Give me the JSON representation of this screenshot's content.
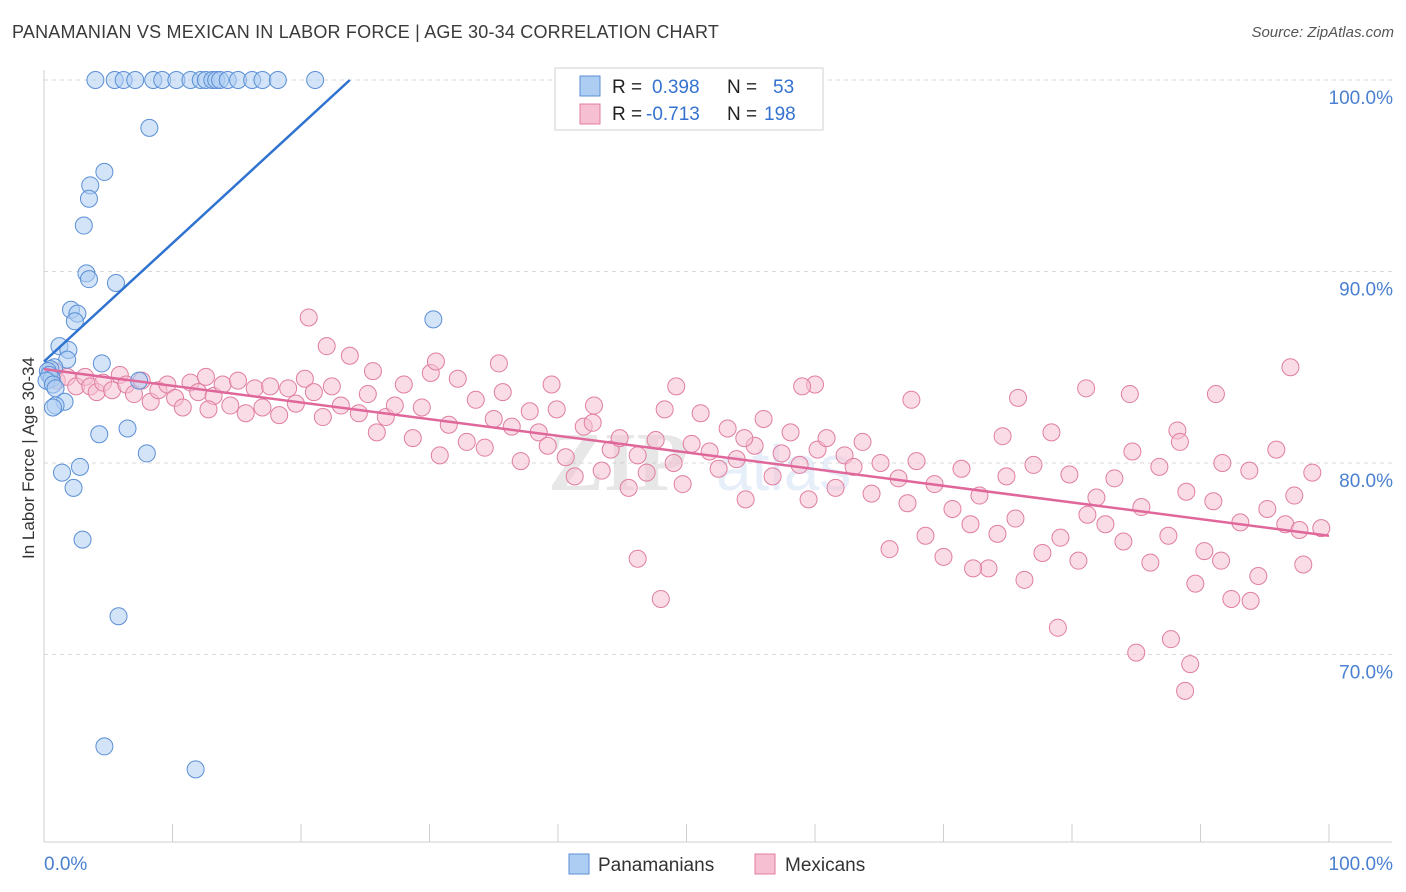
{
  "header": {
    "title": "PANAMANIAN VS MEXICAN IN LABOR FORCE | AGE 30-34 CORRELATION CHART",
    "source": "Source: ZipAtlas.com"
  },
  "colors": {
    "panamanian_fill": "#aecdf3",
    "panamanian_stroke": "#5b8fd6",
    "panamanian_line": "#2f72d0",
    "mexican_fill": "#f6bfd2",
    "mexican_stroke": "#e07ea1",
    "mexican_line": "#e0679a",
    "grid": "#d9d9d9",
    "axis_text": "#4a80d0"
  },
  "legend": {
    "rows": [
      {
        "r_label": "R =",
        "r_value": "0.398",
        "n_label": "N =",
        "n_value": "53"
      },
      {
        "r_label": "R =",
        "r_value": "-0.713",
        "n_label": "N =",
        "n_value": "198"
      }
    ]
  },
  "watermark": {
    "zip": "ZIP",
    "atlas": "atlas"
  },
  "chart_data": {
    "type": "scatter",
    "title": "PANAMANIAN VS MEXICAN IN LABOR FORCE | AGE 30-34 CORRELATION CHART",
    "xlabel": "",
    "ylabel": "In Labor Force | Age 30-34",
    "x_tick_labels": [
      "0.0%",
      "100.0%"
    ],
    "y_tick_labels": [
      "100.0%",
      "90.0%",
      "80.0%",
      "70.0%"
    ],
    "y_ticks": [
      100,
      90,
      80,
      70
    ],
    "xlim": [
      0,
      100
    ],
    "ylim": [
      60,
      101.5
    ],
    "grid": true,
    "legend_placement": "top-center",
    "series": [
      {
        "name": "Panamanians",
        "r": 0.398,
        "n": 53,
        "trend": {
          "x": [
            0,
            23.8
          ],
          "y": [
            85.3,
            100.0
          ]
        },
        "points": [
          [
            4,
            100
          ],
          [
            5.5,
            100
          ],
          [
            6.2,
            100
          ],
          [
            7.1,
            100
          ],
          [
            8.5,
            100
          ],
          [
            9.2,
            100
          ],
          [
            10.3,
            100
          ],
          [
            11.4,
            100
          ],
          [
            12.2,
            100
          ],
          [
            12.6,
            100
          ],
          [
            13.1,
            100
          ],
          [
            13.4,
            100
          ],
          [
            13.7,
            100
          ],
          [
            14.3,
            100
          ],
          [
            15.1,
            100
          ],
          [
            16.2,
            100
          ],
          [
            17.0,
            100
          ],
          [
            18.2,
            100
          ],
          [
            21.1,
            100
          ],
          [
            8.2,
            97.5
          ],
          [
            4.7,
            95.2
          ],
          [
            3.6,
            94.5
          ],
          [
            3.5,
            93.8
          ],
          [
            3.1,
            92.4
          ],
          [
            3.3,
            89.9
          ],
          [
            3.5,
            89.6
          ],
          [
            5.6,
            89.4
          ],
          [
            2.1,
            88.0
          ],
          [
            2.6,
            87.8
          ],
          [
            2.4,
            87.4
          ],
          [
            1.2,
            86.1
          ],
          [
            1.9,
            85.9
          ],
          [
            1.8,
            85.4
          ],
          [
            4.5,
            85.2
          ],
          [
            0.8,
            85.0
          ],
          [
            0.5,
            84.9
          ],
          [
            0.3,
            84.8
          ],
          [
            0.4,
            84.6
          ],
          [
            0.6,
            84.4
          ],
          [
            0.2,
            84.3
          ],
          [
            0.7,
            84.1
          ],
          [
            0.9,
            83.9
          ],
          [
            7.4,
            84.3
          ],
          [
            1.6,
            83.2
          ],
          [
            0.9,
            83.0
          ],
          [
            0.7,
            82.9
          ],
          [
            4.3,
            81.5
          ],
          [
            6.5,
            81.8
          ],
          [
            8.0,
            80.5
          ],
          [
            2.8,
            79.8
          ],
          [
            1.4,
            79.5
          ],
          [
            2.3,
            78.7
          ],
          [
            3.0,
            76.0
          ],
          [
            5.8,
            72.0
          ],
          [
            4.7,
            65.2
          ],
          [
            11.8,
            64.0
          ],
          [
            30.3,
            87.5
          ]
        ]
      },
      {
        "name": "Mexicans",
        "r": -0.713,
        "n": 198,
        "trend": {
          "x": [
            0,
            100
          ],
          "y": [
            84.9,
            76.2
          ]
        },
        "points": [
          [
            0.8,
            84.8
          ],
          [
            1.0,
            84.3
          ],
          [
            1.8,
            84.5
          ],
          [
            2.5,
            84.0
          ],
          [
            3.2,
            84.5
          ],
          [
            3.6,
            84.0
          ],
          [
            4.1,
            83.7
          ],
          [
            4.6,
            84.2
          ],
          [
            5.3,
            83.8
          ],
          [
            5.9,
            84.6
          ],
          [
            6.4,
            84.1
          ],
          [
            7.0,
            83.6
          ],
          [
            7.6,
            84.3
          ],
          [
            8.3,
            83.2
          ],
          [
            8.9,
            83.8
          ],
          [
            9.6,
            84.1
          ],
          [
            10.2,
            83.4
          ],
          [
            10.8,
            82.9
          ],
          [
            11.4,
            84.2
          ],
          [
            12.0,
            83.7
          ],
          [
            12.6,
            84.5
          ],
          [
            13.2,
            83.5
          ],
          [
            13.9,
            84.1
          ],
          [
            14.5,
            83.0
          ],
          [
            15.1,
            84.3
          ],
          [
            15.7,
            82.6
          ],
          [
            16.4,
            83.9
          ],
          [
            17.0,
            82.9
          ],
          [
            17.6,
            84.0
          ],
          [
            18.3,
            82.5
          ],
          [
            19.0,
            83.9
          ],
          [
            19.6,
            83.1
          ],
          [
            20.3,
            84.4
          ],
          [
            21.0,
            83.7
          ],
          [
            21.7,
            82.4
          ],
          [
            22.4,
            84.0
          ],
          [
            23.1,
            83.0
          ],
          [
            23.8,
            85.6
          ],
          [
            24.5,
            82.6
          ],
          [
            25.2,
            83.6
          ],
          [
            25.9,
            81.6
          ],
          [
            26.6,
            82.4
          ],
          [
            27.3,
            83.0
          ],
          [
            28.0,
            84.1
          ],
          [
            28.7,
            81.3
          ],
          [
            29.4,
            82.9
          ],
          [
            30.1,
            84.7
          ],
          [
            30.8,
            80.4
          ],
          [
            31.5,
            82.0
          ],
          [
            32.2,
            84.4
          ],
          [
            32.9,
            81.1
          ],
          [
            33.6,
            83.3
          ],
          [
            34.3,
            80.8
          ],
          [
            35.0,
            82.3
          ],
          [
            35.7,
            83.7
          ],
          [
            36.4,
            81.9
          ],
          [
            37.1,
            80.1
          ],
          [
            37.8,
            82.7
          ],
          [
            38.5,
            81.6
          ],
          [
            39.2,
            80.9
          ],
          [
            39.9,
            82.8
          ],
          [
            40.6,
            80.3
          ],
          [
            41.3,
            79.3
          ],
          [
            42.0,
            81.9
          ],
          [
            42.7,
            82.1
          ],
          [
            43.4,
            79.6
          ],
          [
            44.1,
            80.7
          ],
          [
            44.8,
            81.3
          ],
          [
            45.5,
            78.7
          ],
          [
            46.2,
            80.4
          ],
          [
            46.9,
            79.5
          ],
          [
            47.6,
            81.2
          ],
          [
            48.3,
            82.8
          ],
          [
            49.0,
            80.0
          ],
          [
            49.7,
            78.9
          ],
          [
            50.4,
            81.0
          ],
          [
            51.1,
            82.6
          ],
          [
            51.8,
            80.6
          ],
          [
            52.5,
            79.7
          ],
          [
            53.2,
            81.8
          ],
          [
            53.9,
            80.2
          ],
          [
            54.6,
            78.1
          ],
          [
            55.3,
            80.9
          ],
          [
            56.0,
            82.3
          ],
          [
            56.7,
            79.3
          ],
          [
            57.4,
            80.5
          ],
          [
            58.1,
            81.6
          ],
          [
            58.8,
            79.9
          ],
          [
            59.5,
            78.1
          ],
          [
            60.2,
            80.7
          ],
          [
            60.9,
            81.3
          ],
          [
            61.6,
            78.7
          ],
          [
            62.3,
            80.4
          ],
          [
            63.0,
            79.8
          ],
          [
            63.7,
            81.1
          ],
          [
            64.4,
            78.4
          ],
          [
            65.1,
            80.0
          ],
          [
            65.8,
            75.5
          ],
          [
            66.5,
            79.2
          ],
          [
            67.2,
            77.9
          ],
          [
            67.9,
            80.1
          ],
          [
            68.6,
            76.2
          ],
          [
            69.3,
            78.9
          ],
          [
            70.0,
            75.1
          ],
          [
            70.7,
            77.6
          ],
          [
            71.4,
            79.7
          ],
          [
            72.1,
            76.8
          ],
          [
            72.8,
            78.3
          ],
          [
            73.5,
            74.5
          ],
          [
            74.2,
            76.3
          ],
          [
            74.9,
            79.3
          ],
          [
            75.6,
            77.1
          ],
          [
            76.3,
            73.9
          ],
          [
            77.0,
            79.9
          ],
          [
            77.7,
            75.3
          ],
          [
            78.4,
            81.6
          ],
          [
            79.1,
            76.1
          ],
          [
            79.8,
            79.4
          ],
          [
            80.5,
            74.9
          ],
          [
            81.2,
            77.3
          ],
          [
            81.9,
            78.2
          ],
          [
            82.6,
            76.8
          ],
          [
            83.3,
            79.2
          ],
          [
            84.0,
            75.9
          ],
          [
            84.7,
            80.6
          ],
          [
            85.4,
            77.7
          ],
          [
            86.1,
            74.8
          ],
          [
            86.8,
            79.8
          ],
          [
            87.5,
            76.2
          ],
          [
            88.2,
            81.7
          ],
          [
            88.9,
            78.5
          ],
          [
            89.6,
            73.7
          ],
          [
            90.3,
            75.4
          ],
          [
            91.0,
            78.0
          ],
          [
            91.7,
            80.0
          ],
          [
            92.4,
            72.9
          ],
          [
            93.1,
            76.9
          ],
          [
            93.8,
            79.6
          ],
          [
            94.5,
            74.1
          ],
          [
            95.2,
            77.6
          ],
          [
            95.9,
            80.7
          ],
          [
            96.6,
            76.8
          ],
          [
            97.3,
            78.3
          ],
          [
            98.0,
            74.7
          ],
          [
            98.7,
            79.5
          ],
          [
            99.4,
            76.6
          ],
          [
            97.0,
            85.0
          ],
          [
            91.2,
            83.6
          ],
          [
            75.8,
            83.4
          ],
          [
            84.5,
            83.6
          ],
          [
            60.0,
            84.1
          ],
          [
            12.8,
            82.8
          ],
          [
            22.0,
            86.1
          ],
          [
            20.6,
            87.6
          ],
          [
            25.6,
            84.8
          ],
          [
            30.5,
            85.3
          ],
          [
            35.4,
            85.2
          ],
          [
            39.5,
            84.1
          ],
          [
            42.8,
            83.0
          ],
          [
            49.2,
            84.0
          ],
          [
            54.5,
            81.3
          ],
          [
            59.0,
            84.0
          ],
          [
            67.5,
            83.3
          ],
          [
            74.6,
            81.4
          ],
          [
            81.1,
            83.9
          ],
          [
            88.4,
            81.1
          ],
          [
            97.7,
            76.5
          ],
          [
            46.2,
            75.0
          ],
          [
            48.0,
            72.9
          ],
          [
            72.3,
            74.5
          ],
          [
            78.9,
            71.4
          ],
          [
            85.0,
            70.1
          ],
          [
            87.7,
            70.8
          ],
          [
            88.8,
            68.1
          ],
          [
            89.2,
            69.5
          ],
          [
            91.6,
            74.9
          ],
          [
            93.9,
            72.8
          ]
        ]
      }
    ]
  },
  "bottom_legend": {
    "items": [
      {
        "label": "Panamanians"
      },
      {
        "label": "Mexicans"
      }
    ]
  }
}
